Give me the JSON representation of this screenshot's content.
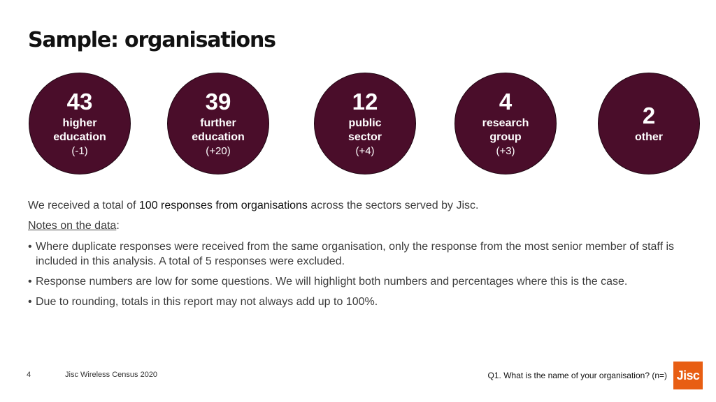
{
  "title": "Sample: organisations",
  "stats": [
    {
      "number": "43",
      "line1": "higher",
      "line2": "education",
      "change": "(-1)"
    },
    {
      "number": "39",
      "line1": "further",
      "line2": "education",
      "change": "(+20)"
    },
    {
      "number": "12",
      "line1": "public",
      "line2": "sector",
      "change": "(+4)"
    },
    {
      "number": "4",
      "line1": "research",
      "line2": "group",
      "change": "(+3)"
    },
    {
      "number": "2",
      "line1": "other",
      "line2": "",
      "change": ""
    }
  ],
  "intro": {
    "before": "We received a total of ",
    "highlight": "100 responses from organisations",
    "after": " across the sectors served by Jisc."
  },
  "notes": {
    "title": "Notes on the data",
    "suffix": ":",
    "items": [
      "Where duplicate responses were received from the same organisation, only the response from the most senior member of staff is included in this analysis. A total of 5 responses were excluded.",
      "Response numbers are low for some questions.  We will highlight both numbers and percentages where this is the case.",
      "Due to rounding, totals in this report may not always add up to 100%."
    ]
  },
  "footer": {
    "page_number": "4",
    "report_title": "Jisc Wireless Census 2020",
    "question": "Q1. What is the name of your organisation? (n=)",
    "logo_text": "Jisc"
  },
  "colors": {
    "circle": "#4a0d2a",
    "logo": "#e85e13"
  }
}
